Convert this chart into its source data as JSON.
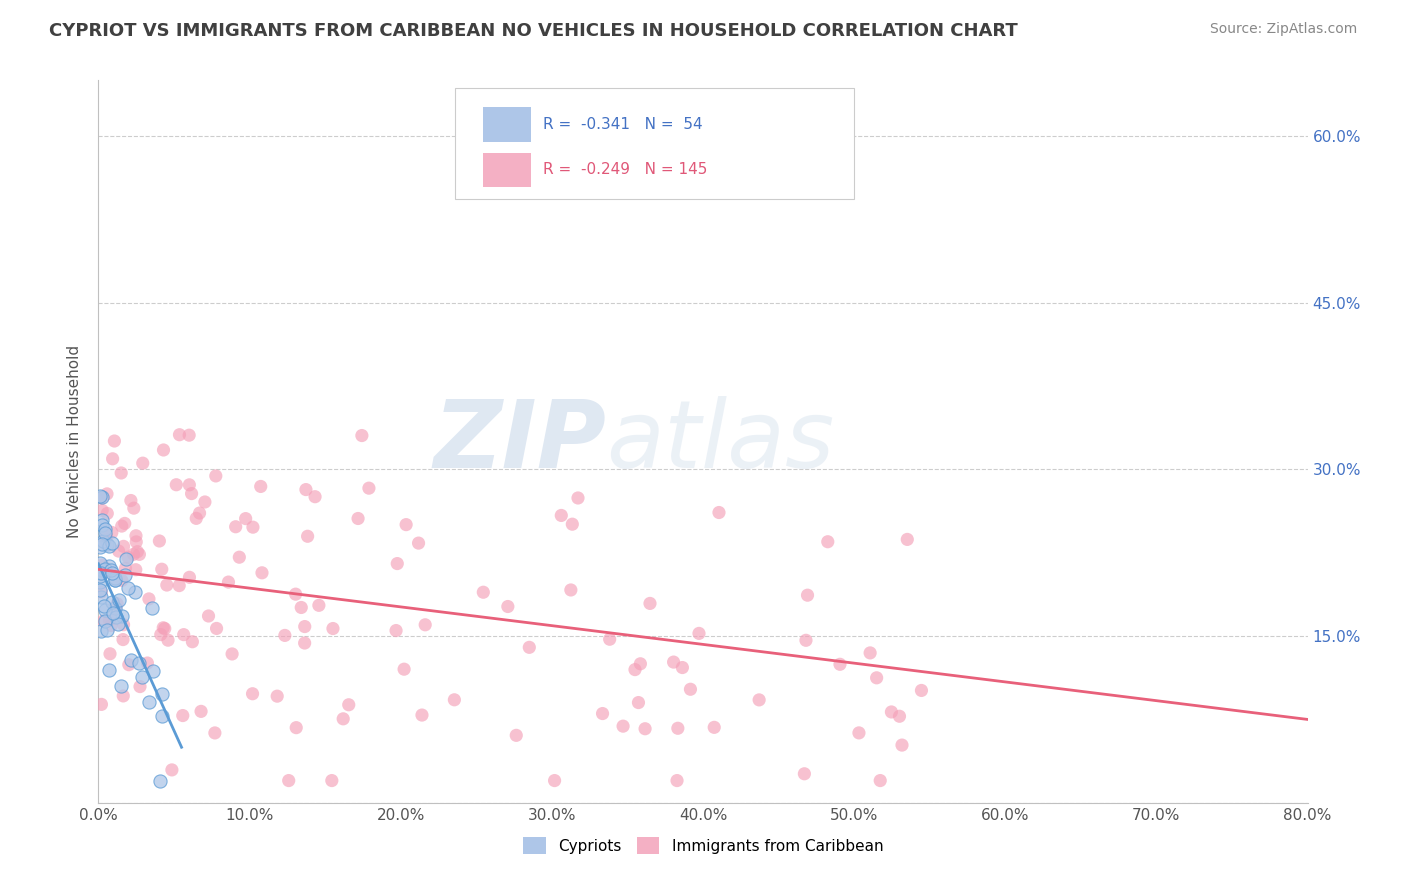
{
  "title": "CYPRIOT VS IMMIGRANTS FROM CARIBBEAN NO VEHICLES IN HOUSEHOLD CORRELATION CHART",
  "source": "Source: ZipAtlas.com",
  "ylabel_ticks": [
    0.0,
    0.15,
    0.3,
    0.45,
    0.6
  ],
  "ylabel_labels": [
    "",
    "15.0%",
    "30.0%",
    "45.0%",
    "60.0%"
  ],
  "xlim": [
    0.0,
    0.8
  ],
  "ylim": [
    0.0,
    0.65
  ],
  "watermark_zip": "ZIP",
  "watermark_atlas": "atlas",
  "cypriot_color": "#5b9bd5",
  "cypriot_scatter_color": "#aec6e8",
  "caribbean_color": "#e8607a",
  "caribbean_scatter_color": "#f4a0b8",
  "grid_color": "#c8c8c8",
  "background_color": "#ffffff",
  "title_color": "#404040",
  "right_axis_color": "#4472c4",
  "legend_blue_color": "#aec6e8",
  "legend_pink_color": "#f4b0c4",
  "legend_text_blue": "#4472c4",
  "legend_text_pink": "#e05878",
  "xtick_labels": [
    "0.0%",
    "10.0%",
    "20.0%",
    "30.0%",
    "40.0%",
    "50.0%",
    "60.0%",
    "70.0%",
    "80.0%"
  ],
  "xtick_values": [
    0.0,
    0.1,
    0.2,
    0.3,
    0.4,
    0.5,
    0.6,
    0.7,
    0.8
  ],
  "cypriot_trend_x0": 0.0,
  "cypriot_trend_y0": 0.215,
  "cypriot_trend_x1": 0.055,
  "cypriot_trend_y1": 0.05,
  "caribbean_trend_x0": 0.0,
  "caribbean_trend_y0": 0.21,
  "caribbean_trend_x1": 0.8,
  "caribbean_trend_y1": 0.075
}
